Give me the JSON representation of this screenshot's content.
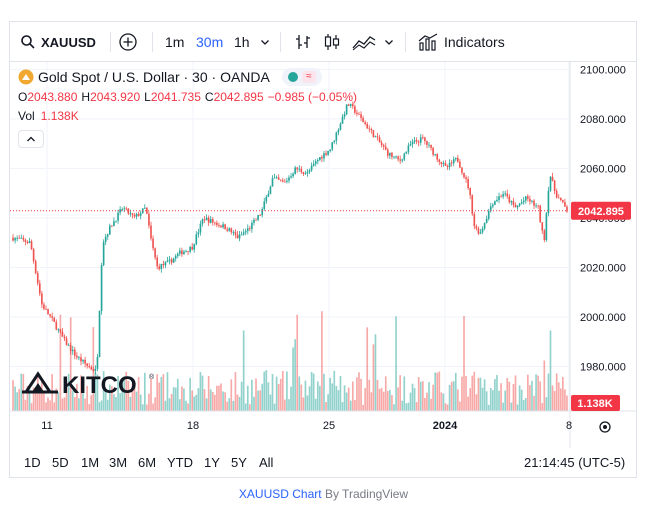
{
  "toolbar": {
    "symbol": "XAUUSD",
    "intervals": [
      "1m",
      "30m",
      "1h"
    ],
    "active_interval": "30m",
    "indicators_label": "Indicators",
    "icons": [
      "search-icon",
      "add-symbol-icon",
      "bar-style-icon",
      "candle-style-icon",
      "area-style-icon",
      "chevron-down-icon",
      "indicators-icon"
    ]
  },
  "legend": {
    "title": "Gold Spot / U.S. Dollar · 30 · OANDA",
    "o_label": "O",
    "o": "2043.880",
    "h_label": "H",
    "h": "2043.920",
    "l_label": "L",
    "l": "2041.735",
    "c_label": "C",
    "c": "2042.895",
    "change": "−0.985 (−0.05%)",
    "vol_label": "Vol",
    "vol": "1.138K"
  },
  "watermark": "KITCO",
  "chart_data": {
    "type": "candlestick",
    "y_ticks": [
      "2100.000",
      "2080.000",
      "2060.000",
      "2040.000",
      "2020.000",
      "2000.000",
      "1980.000"
    ],
    "y_tick_values": [
      2100,
      2080,
      2060,
      2040,
      2020,
      2000,
      1980
    ],
    "ylim": [
      1962,
      2103
    ],
    "x_ticks": [
      "11",
      "18",
      "25",
      "2024",
      "8"
    ],
    "last_price": "2042.895",
    "last_price_value": 2042.895,
    "last_volume": "1.138K",
    "price_path": [
      [
        0,
        2032
      ],
      [
        3,
        2030
      ],
      [
        5,
        2005
      ],
      [
        7,
        1998
      ],
      [
        9,
        1990
      ],
      [
        11,
        1984
      ],
      [
        13,
        1980
      ],
      [
        14.5,
        1978
      ],
      [
        15.5,
        2030
      ],
      [
        17,
        2037
      ],
      [
        19,
        2044
      ],
      [
        21,
        2040
      ],
      [
        23,
        2044
      ],
      [
        24,
        2030
      ],
      [
        25,
        2020
      ],
      [
        27,
        2022
      ],
      [
        29,
        2026
      ],
      [
        31,
        2028
      ],
      [
        33,
        2040
      ],
      [
        35,
        2038
      ],
      [
        37,
        2036
      ],
      [
        39,
        2032
      ],
      [
        41,
        2036
      ],
      [
        43,
        2042
      ],
      [
        45,
        2056
      ],
      [
        47,
        2054
      ],
      [
        49,
        2060
      ],
      [
        51,
        2058
      ],
      [
        53,
        2064
      ],
      [
        55,
        2068
      ],
      [
        57,
        2080
      ],
      [
        58,
        2086
      ],
      [
        59,
        2084
      ],
      [
        61,
        2078
      ],
      [
        63,
        2072
      ],
      [
        65,
        2066
      ],
      [
        67,
        2063
      ],
      [
        69,
        2070
      ],
      [
        71,
        2072
      ],
      [
        73,
        2066
      ],
      [
        75,
        2060
      ],
      [
        77,
        2064
      ],
      [
        79,
        2052
      ],
      [
        80,
        2036
      ],
      [
        81,
        2034
      ],
      [
        83,
        2046
      ],
      [
        85,
        2050
      ],
      [
        87,
        2044
      ],
      [
        89,
        2048
      ],
      [
        91,
        2044
      ],
      [
        92,
        2030
      ],
      [
        93,
        2058
      ],
      [
        94,
        2050
      ],
      [
        96,
        2043
      ]
    ]
  },
  "ranges": [
    "1D",
    "5D",
    "1M",
    "3M",
    "6M",
    "YTD",
    "1Y",
    "5Y",
    "All"
  ],
  "active_range": "1M",
  "clock": "21:14:45 (UTC-5)",
  "credit": {
    "link": "XAUUSD Chart",
    "by": "By TradingView"
  },
  "colors": {
    "up": "#26a69a",
    "down": "#ef5350",
    "accent": "#2962ff",
    "price_tag": "#f23645"
  }
}
